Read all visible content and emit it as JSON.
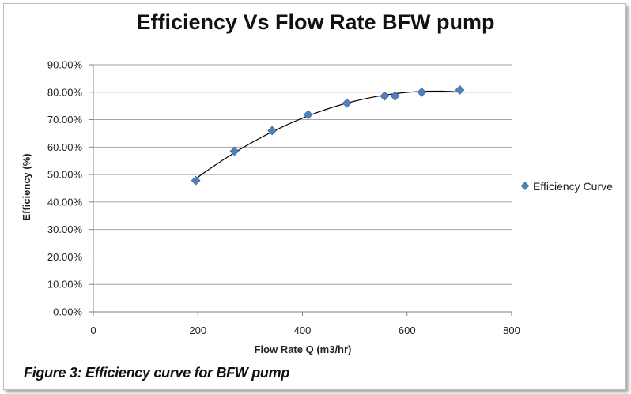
{
  "chart_data": {
    "type": "scatter",
    "title": "Efficiency Vs Flow Rate BFW pump",
    "xlabel": "Flow Rate Q (m3/hr)",
    "ylabel": "Efficiency  (%)",
    "xlim": [
      0,
      800
    ],
    "ylim": [
      0,
      90
    ],
    "x_ticks": [
      "0",
      "200",
      "400",
      "600",
      "800"
    ],
    "x_tick_values": [
      0,
      200,
      400,
      600,
      800
    ],
    "y_ticks": [
      "0.00%",
      "10.00%",
      "20.00%",
      "30.00%",
      "40.00%",
      "50.00%",
      "60.00%",
      "70.00%",
      "80.00%",
      "90.00%"
    ],
    "y_tick_values": [
      0,
      10,
      20,
      30,
      40,
      50,
      60,
      70,
      80,
      90
    ],
    "grid": "horizontal",
    "legend_position": "right",
    "series": [
      {
        "name": "Efficiency Curve",
        "color": "#4f81bd",
        "marker": "diamond",
        "trendline": "polynomial",
        "x": [
          196,
          270,
          342,
          411,
          485,
          557,
          577,
          628,
          701
        ],
        "y": [
          47.8,
          58.5,
          66.0,
          71.8,
          76.0,
          78.6,
          78.6,
          80.0,
          80.8
        ]
      }
    ]
  },
  "caption": "Figure 3: Efficiency curve for BFW pump"
}
